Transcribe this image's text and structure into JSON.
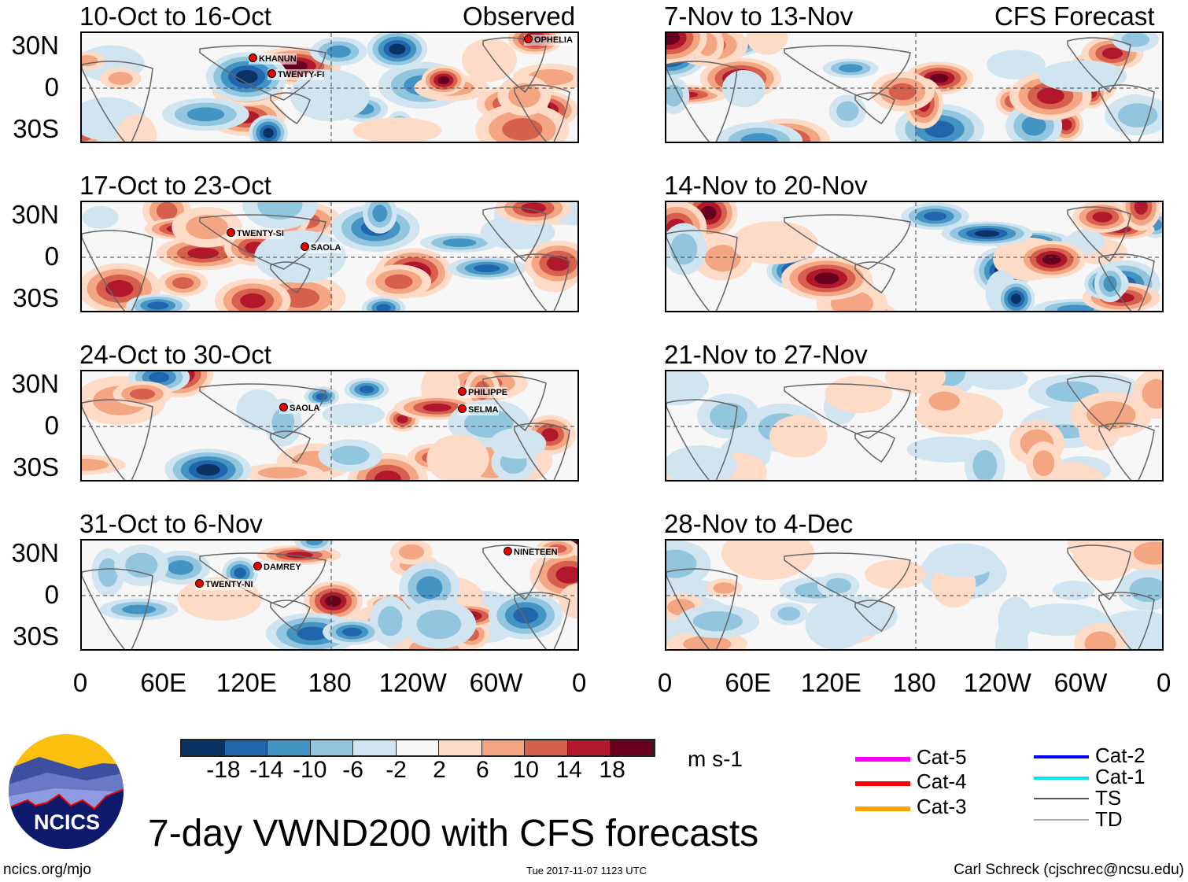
{
  "header": {
    "observed_label": "Observed",
    "forecast_label": "CFS Forecast"
  },
  "panels_left": [
    {
      "title": "10-Oct to 16-Oct",
      "storms": [
        "KHANUN",
        "TWENTY-FI",
        "OPHELIA"
      ]
    },
    {
      "title": "17-Oct to 23-Oct",
      "storms": [
        "TWENTY-SI",
        "SAOLA"
      ]
    },
    {
      "title": "24-Oct to 30-Oct",
      "storms": [
        "SAOLA",
        "PHILIPPE",
        "SELMA"
      ]
    },
    {
      "title": "31-Oct to 6-Nov",
      "storms": [
        "DAMREY",
        "TWENTY-NI",
        "NINETEEN"
      ]
    }
  ],
  "panels_right": [
    {
      "title": "7-Nov to 13-Nov"
    },
    {
      "title": "14-Nov to 20-Nov"
    },
    {
      "title": "21-Nov to 27-Nov"
    },
    {
      "title": "28-Nov to 4-Dec"
    }
  ],
  "lat_labels": [
    "30N",
    "0",
    "30S"
  ],
  "lon_labels": [
    "0",
    "60E",
    "120E",
    "180",
    "120W",
    "60W",
    "0"
  ],
  "colorbar": {
    "labels": [
      "-18",
      "-14",
      "-10",
      "-6",
      "-2",
      "2",
      "6",
      "10",
      "14",
      "18"
    ],
    "colors": [
      "#0a3262",
      "#2166ac",
      "#4393c3",
      "#92c5de",
      "#d1e5f0",
      "#f7f7f7",
      "#fddbc7",
      "#f4a582",
      "#d6604d",
      "#b2182b",
      "#67001f"
    ],
    "units": "m s-1"
  },
  "legend": [
    {
      "label": "Cat-5",
      "color": "#ff00ff"
    },
    {
      "label": "Cat-4",
      "color": "#ff0000"
    },
    {
      "label": "Cat-3",
      "color": "#ffa500"
    },
    {
      "label": "Cat-2",
      "color": "#0000ff"
    },
    {
      "label": "Cat-1",
      "color": "#00e5ee"
    },
    {
      "label": "TS",
      "color": "#555555"
    },
    {
      "label": "TD",
      "color": "#aaaaaa"
    }
  ],
  "title": "7-day VWND200 with CFS forecasts",
  "logo_text": "NCICS",
  "footer": {
    "left": "ncics.org/mjo",
    "center": "Tue 2017-11-07 1123 UTC",
    "right": "Carl Schreck (cjschrec@ncsu.edu)"
  }
}
